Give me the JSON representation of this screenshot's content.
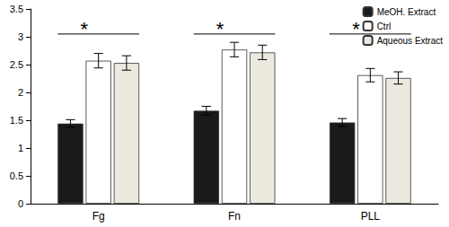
{
  "chart_data": {
    "type": "bar",
    "categories": [
      "Fg",
      "Fn",
      "PLL"
    ],
    "series": [
      {
        "name": "MeOH. Extract",
        "color": "#1a1a1a",
        "values": [
          1.44,
          1.67,
          1.46
        ],
        "errors": [
          0.07,
          0.08,
          0.07
        ]
      },
      {
        "name": "Ctrl",
        "color": "#ffffff",
        "values": [
          2.57,
          2.77,
          2.31
        ],
        "errors": [
          0.13,
          0.13,
          0.12
        ]
      },
      {
        "name": "Aqueous Extract",
        "color": "#ece9df",
        "values": [
          2.53,
          2.72,
          2.26
        ],
        "errors": [
          0.13,
          0.13,
          0.11
        ]
      }
    ],
    "ylim": [
      0,
      3.5
    ],
    "yticks": [
      0,
      0.5,
      1,
      1.5,
      2,
      2.5,
      3,
      3.5
    ],
    "grid": false,
    "legend": "upper right",
    "annotations": [
      {
        "category": "Fg",
        "y": 3.05,
        "text": "*"
      },
      {
        "category": "Fn",
        "y": 3.05,
        "text": "*"
      },
      {
        "category": "PLL",
        "y": 3.05,
        "text": "*"
      }
    ]
  }
}
